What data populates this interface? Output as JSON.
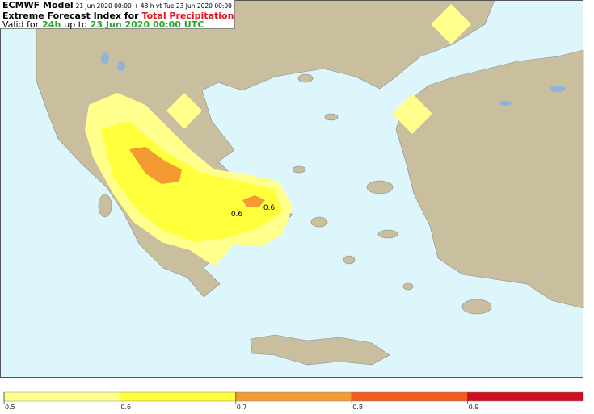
{
  "header": {
    "model": "ECMWF Model",
    "run_info": "21 Jun 2020 00:00 + 48 h vt Tue 23 Jun 2020 00:00",
    "index": "Extreme Forecast Index for",
    "parameter": "Total Precipitation",
    "valid_prefix": "Valid for",
    "period": "24h",
    "valid_mid": "up to",
    "valid_time": "23 Jun 2020 00:00 UTC"
  },
  "contour_labels": [
    "0.6",
    "0.6"
  ],
  "colorbar": {
    "ticks": [
      0.5,
      0.6,
      0.7,
      0.8,
      0.9
    ],
    "colors": [
      "#ffff8c",
      "#ffff3c",
      "#f39a32",
      "#f25c1e",
      "#cc1020"
    ]
  }
}
